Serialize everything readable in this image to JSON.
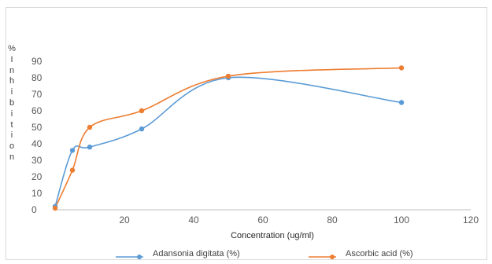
{
  "chart_data": {
    "type": "scatter",
    "title": "",
    "xlabel": "Concentration (ug/ml)",
    "ylabel": "% Inhibition",
    "ylabel_chars": [
      "%",
      "I",
      "n",
      "h",
      "i",
      "b",
      "i",
      "t",
      "i",
      "o",
      "n"
    ],
    "xlim": [
      0,
      120
    ],
    "ylim": [
      0,
      90
    ],
    "xticks": [
      20,
      40,
      60,
      80,
      100,
      120
    ],
    "yticks": [
      0,
      10,
      20,
      30,
      40,
      50,
      60,
      70,
      80,
      90
    ],
    "grid": false,
    "legend": "bottom",
    "series": [
      {
        "name": "Adansonia digitata (%)",
        "color": "#5b9bd5",
        "x": [
          0,
          5,
          10,
          25,
          50,
          100
        ],
        "y": [
          2,
          36,
          38,
          49,
          80,
          65
        ]
      },
      {
        "name": "Ascorbic   acid (%)",
        "color": "#ed7d31",
        "x": [
          0,
          5,
          10,
          25,
          50,
          100
        ],
        "y": [
          1,
          24,
          50,
          60,
          81,
          86
        ]
      }
    ]
  }
}
